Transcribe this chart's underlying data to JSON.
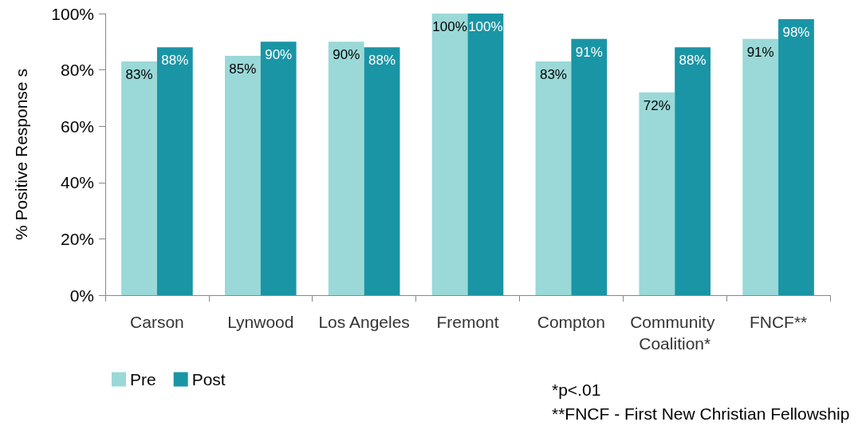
{
  "chart_data": {
    "type": "bar",
    "ylabel": "% Positive Response s",
    "categories": [
      "Carson",
      "Lynwood",
      "Los Angeles",
      "Fremont",
      "Compton",
      "Community Coalition*",
      "FNCF**"
    ],
    "series": [
      {
        "name": "Pre",
        "color": "#9ad9d8",
        "values": [
          83,
          85,
          90,
          100,
          83,
          72,
          91
        ],
        "value_labels": [
          "83%",
          "85%",
          "90%",
          "100%",
          "83%",
          "72%",
          "91%"
        ]
      },
      {
        "name": "Post",
        "color": "#1a95a5",
        "values": [
          88,
          90,
          88,
          100,
          91,
          88,
          98
        ],
        "value_labels": [
          "88%",
          "90%",
          "88%",
          "100%",
          "91%",
          "88%",
          "98%"
        ]
      }
    ],
    "ylim": [
      0,
      100
    ],
    "yticks": [
      {
        "value": 0,
        "label": "0%"
      },
      {
        "value": 20,
        "label": "20%"
      },
      {
        "value": 40,
        "label": "40%"
      },
      {
        "value": 60,
        "label": "60%"
      },
      {
        "value": 80,
        "label": "80%"
      },
      {
        "value": 100,
        "label": "100%"
      }
    ],
    "grid": false,
    "legend": "bottom left",
    "annotations": [
      "*p<.01",
      "**FNCF - First New Christian Fellowship"
    ]
  }
}
